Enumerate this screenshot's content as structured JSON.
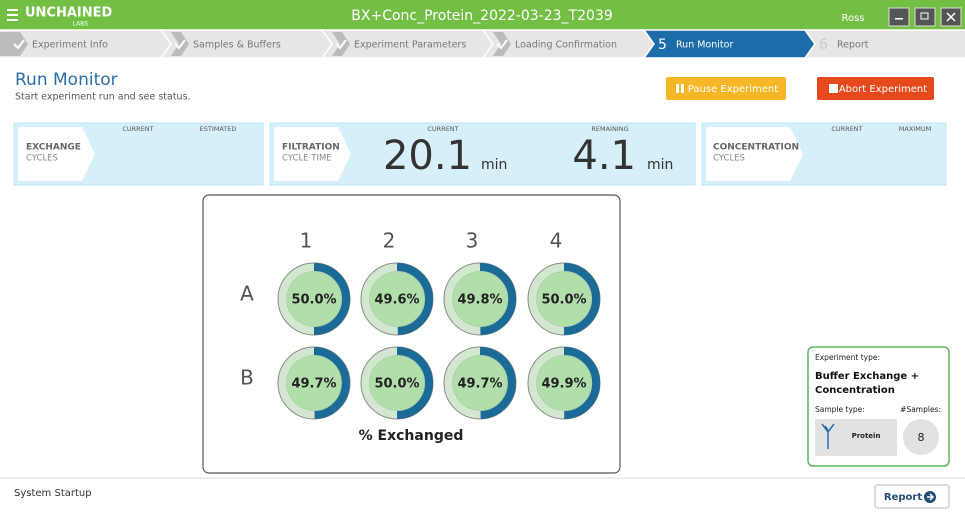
{
  "header": {
    "logo": "UNCHAINED",
    "logo_sub": "LABS",
    "title": "BX+Conc_Protein_2022-03-23_T2039",
    "user": "Ross"
  },
  "steps": [
    {
      "label": "Experiment Info"
    },
    {
      "label": "Samples & Buffers"
    },
    {
      "label": "Experiment Parameters"
    },
    {
      "label": "Loading Confirmation"
    },
    {
      "number": "5",
      "label": "Run Monitor"
    },
    {
      "number": "6",
      "label": "Report"
    }
  ],
  "page": {
    "title": "Run Monitor",
    "subtitle": "Start experiment run and see status."
  },
  "buttons": {
    "pause": "Pause Experiment",
    "abort": "Abort Experiment"
  },
  "panels": {
    "exchange": {
      "title": "EXCHANGE",
      "subtitle": "CYCLES",
      "current": "CURRENT",
      "estimated": "ESTIMATED"
    },
    "filtration": {
      "title": "FILTRATION",
      "subtitle": "CYCLE TIME",
      "current": "CURRENT",
      "current_value": "20.1",
      "current_unit": "min",
      "remaining": "REMAINING",
      "remaining_value": "4.1",
      "remaining_unit": "min"
    },
    "concentration": {
      "title": "CONCENTRATION",
      "subtitle": "CYCLES",
      "current": "CURRENT",
      "maximum": "MAXIMUM"
    }
  },
  "plate": {
    "columns": [
      "1",
      "2",
      "3",
      "4"
    ],
    "rows": [
      {
        "label": "A",
        "wells": [
          {
            "value": 50.0,
            "label": "50.0%"
          },
          {
            "value": 49.6,
            "label": "49.6%"
          },
          {
            "value": 49.8,
            "label": "49.8%"
          },
          {
            "value": 50.0,
            "label": "50.0%"
          }
        ]
      },
      {
        "label": "B",
        "wells": [
          {
            "value": 49.7,
            "label": "49.7%"
          },
          {
            "value": 50.0,
            "label": "50.0%"
          },
          {
            "value": 49.7,
            "label": "49.7%"
          },
          {
            "value": 49.9,
            "label": "49.9%"
          }
        ]
      }
    ],
    "caption": "% Exchanged"
  },
  "info_card": {
    "experiment_type_label": "Experiment type:",
    "experiment_type_line1": "Buffer Exchange +",
    "experiment_type_line2": "Concentration",
    "sample_type_label": "Sample type:",
    "samples_label": "#Samples:",
    "sample_type": "Protein",
    "samples": "8"
  },
  "footer": {
    "status": "System Startup",
    "report": "Report"
  }
}
